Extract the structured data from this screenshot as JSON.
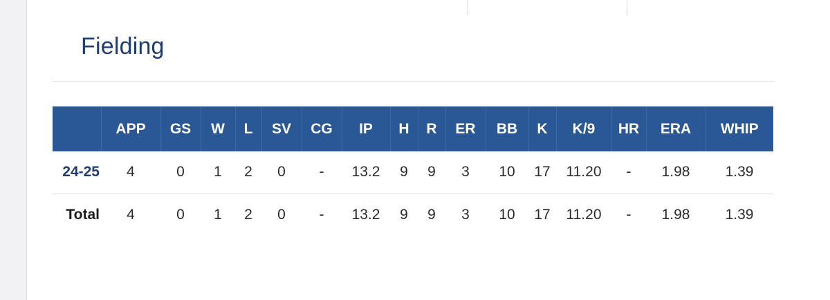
{
  "section_title": "Fielding",
  "table": {
    "columns": [
      "",
      "APP",
      "GS",
      "W",
      "L",
      "SV",
      "CG",
      "IP",
      "H",
      "R",
      "ER",
      "BB",
      "K",
      "K/9",
      "HR",
      "ERA",
      "WHIP"
    ],
    "rows": [
      {
        "label": "24-25",
        "values": [
          "4",
          "0",
          "1",
          "2",
          "0",
          "-",
          "13.2",
          "9",
          "9",
          "3",
          "10",
          "17",
          "11.20",
          "-",
          "1.98",
          "1.39"
        ]
      },
      {
        "label": "Total",
        "values": [
          "4",
          "0",
          "1",
          "2",
          "0",
          "-",
          "13.2",
          "9",
          "9",
          "3",
          "10",
          "17",
          "11.20",
          "-",
          "1.98",
          "1.39"
        ]
      }
    ]
  },
  "colors": {
    "header_bg": "#2a5897",
    "title_color": "#1f3c6e"
  }
}
